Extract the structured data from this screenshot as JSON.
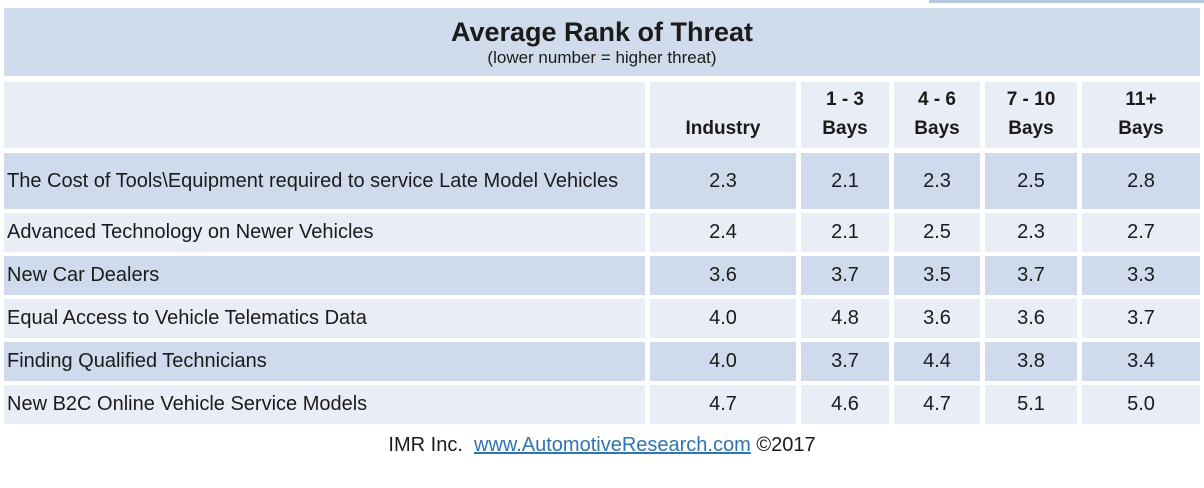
{
  "title": {
    "text": "Average Rank of Threat",
    "subtitle": "(lower number = higher threat)"
  },
  "header": {
    "col0": {
      "top": "",
      "bottom": ""
    },
    "col1": {
      "top": "",
      "bottom": "Industry"
    },
    "col2": {
      "top": "1 - 3",
      "bottom": "Bays"
    },
    "col3": {
      "top": "4 - 6",
      "bottom": "Bays"
    },
    "col4": {
      "top": "7 - 10",
      "bottom": "Bays"
    },
    "col5": {
      "top": "11+",
      "bottom": "Bays"
    }
  },
  "table": {
    "rows": [
      {
        "label": "The Cost of Tools\\Equipment required to service Late Model Vehicles",
        "values": [
          "2.3",
          "2.1",
          "2.3",
          "2.5",
          "2.8"
        ]
      },
      {
        "label": "Advanced Technology on Newer Vehicles",
        "values": [
          "2.4",
          "2.1",
          "2.5",
          "2.3",
          "2.7"
        ]
      },
      {
        "label": "New Car Dealers",
        "values": [
          "3.6",
          "3.7",
          "3.5",
          "3.7",
          "3.3"
        ]
      },
      {
        "label": "Equal Access to Vehicle Telematics Data",
        "values": [
          "4.0",
          "4.8",
          "3.6",
          "3.6",
          "3.7"
        ]
      },
      {
        "label": "Finding Qualified Technicians",
        "values": [
          "4.0",
          "3.7",
          "4.4",
          "3.8",
          "3.4"
        ]
      },
      {
        "label": "New B2C Online Vehicle Service Models",
        "values": [
          "4.7",
          "4.6",
          "4.7",
          "5.1",
          "5.0"
        ]
      }
    ]
  },
  "footer": {
    "prefix": "IMR Inc.  ",
    "link": "www.AutomotiveResearch.com",
    "suffix": " ©2017"
  },
  "colors": {
    "title_band": "#d0dcec",
    "row_dark": "#cfdbec",
    "row_light": "#e9edf6",
    "link_blue": "#2e74b5",
    "text": "#1b1b1b"
  },
  "chart_data": {
    "type": "table",
    "title": "Average Rank of Threat",
    "subtitle": "(lower number = higher threat)",
    "columns": [
      "Industry",
      "1 - 3 Bays",
      "4 - 6 Bays",
      "7 - 10 Bays",
      "11+ Bays"
    ],
    "rows": [
      {
        "label": "The Cost of Tools\\Equipment required to service Late Model Vehicles",
        "values": [
          2.3,
          2.1,
          2.3,
          2.5,
          2.8
        ]
      },
      {
        "label": "Advanced Technology on Newer Vehicles",
        "values": [
          2.4,
          2.1,
          2.5,
          2.3,
          2.7
        ]
      },
      {
        "label": "New Car Dealers",
        "values": [
          3.6,
          3.7,
          3.5,
          3.7,
          3.3
        ]
      },
      {
        "label": "Equal Access to Vehicle Telematics Data",
        "values": [
          4.0,
          4.8,
          3.6,
          3.6,
          3.7
        ]
      },
      {
        "label": "Finding Qualified Technicians",
        "values": [
          4.0,
          3.7,
          4.4,
          3.8,
          3.4
        ]
      },
      {
        "label": "New B2C Online Vehicle Service Models",
        "values": [
          4.7,
          4.6,
          4.7,
          5.1,
          5.0
        ]
      }
    ],
    "note": "lower number = higher threat",
    "source": "IMR Inc. www.AutomotiveResearch.com ©2017"
  }
}
